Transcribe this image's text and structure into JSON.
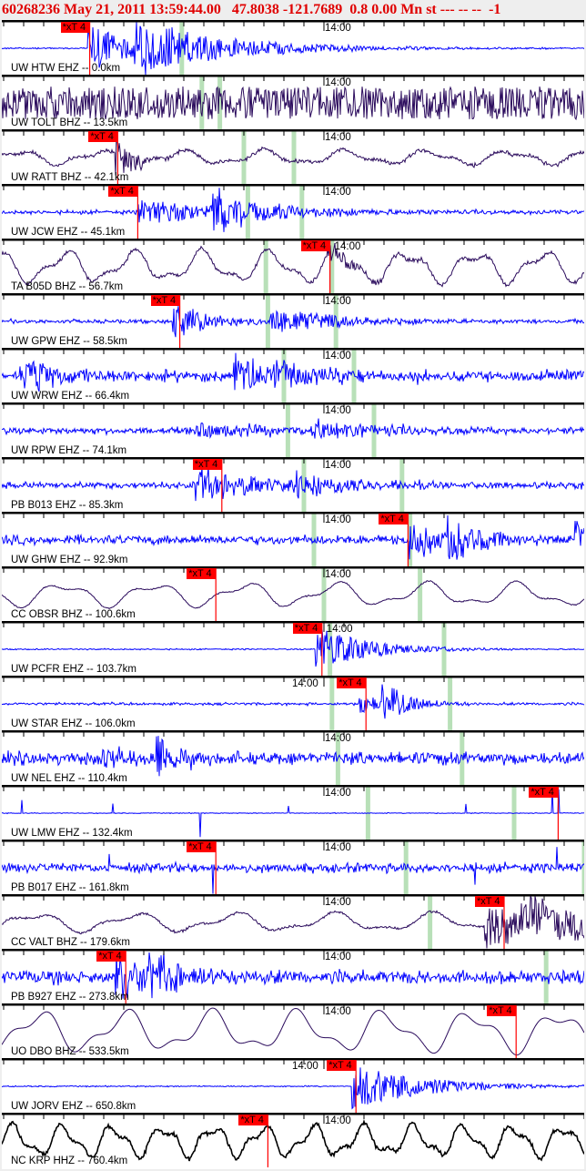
{
  "header": {
    "event_id": "60268236",
    "datetime": "May 21, 2011 13:59:44.00",
    "latitude": "47.8038",
    "longitude": "-121.7689",
    "magnitude": "0.8",
    "depth": "0.00",
    "mag_type": "Mn",
    "status": "st",
    "extra": "--- -- --",
    "flag": "-1"
  },
  "chart_data": {
    "type": "line",
    "title": "60268236 May 21, 2011 13:59:44.00   47.8038 -121.7689  0.8 0.00 Mn st --- -- --  -1",
    "x_axis": {
      "start": "13:59:44.0",
      "tick_interval_s": 1,
      "tick_label": "14:00"
    },
    "pick_label": "*xT 4",
    "colors": {
      "pick": "#ff0000",
      "theoretical_arrival": "#b8e0b8",
      "EHZ": "#0000ff",
      "BHZ": "#2a0a5c",
      "HHZ": "#000000",
      "header": "#e00000"
    },
    "traces": [
      {
        "label": "UW HTW EHZ -- 0.0km",
        "channel": "EHZ",
        "pick": "13:59:48.3",
        "arrivals": [
          "13:59:52.9"
        ]
      },
      {
        "label": "UW TOLT BHZ -- 13.5km",
        "channel": "BHZ",
        "pick": null,
        "arrivals": [
          "13:59:53.9",
          "13:59:54.8"
        ]
      },
      {
        "label": "UW RATT BHZ -- 42.1km",
        "channel": "BHZ",
        "pick": "13:59:49.7",
        "arrivals": [
          "13:59:56.0",
          "13:59:58.5"
        ]
      },
      {
        "label": "UW JCW EHZ -- 45.1km",
        "channel": "EHZ",
        "pick": "13:59:50.7",
        "arrivals": [
          "13:59:56.2",
          "13:59:58.9"
        ]
      },
      {
        "label": "TA B05D BHZ -- 56.7km",
        "channel": "BHZ",
        "pick": "14:00:00.3",
        "arrivals": [
          "13:59:57.1",
          "14:00:00.4"
        ]
      },
      {
        "label": "UW GPW EHZ -- 58.5km",
        "channel": "EHZ",
        "pick": "13:59:52.8",
        "arrivals": [
          "13:59:57.2",
          "14:00:00.6"
        ]
      },
      {
        "label": "UW WRW EHZ -- 66.4km",
        "channel": "EHZ",
        "pick": null,
        "arrivals": [
          "13:59:58.0",
          "14:00:01.5"
        ]
      },
      {
        "label": "UW RPW EHZ -- 74.1km",
        "channel": "EHZ",
        "pick": null,
        "arrivals": [
          "13:59:58.2",
          "14:00:02.5"
        ]
      },
      {
        "label": "PB B013 EHZ -- 85.3km",
        "channel": "EHZ",
        "pick": "13:59:54.9",
        "arrivals": [
          "13:59:59.0",
          "14:00:03.9"
        ]
      },
      {
        "label": "UW GHW EHZ -- 92.9km",
        "channel": "EHZ",
        "pick": "14:00:04.2",
        "arrivals": [
          "13:59:59.5",
          "14:00:04.3"
        ]
      },
      {
        "label": "CC OBSR BHZ -- 100.6km",
        "channel": "BHZ",
        "pick": "13:59:54.6",
        "arrivals": [
          "14:00:00.0",
          "14:00:04.8"
        ]
      },
      {
        "label": "UW PCFR EHZ -- 103.7km",
        "channel": "EHZ",
        "pick": "13:59:59.9",
        "arrivals": [
          "14:00:00.3",
          "14:00:06.0"
        ]
      },
      {
        "label": "UW STAR EHZ -- 106.0km",
        "channel": "EHZ",
        "pick": "14:00:02.1",
        "arrivals": [
          "14:00:00.4",
          "14:00:06.3"
        ]
      },
      {
        "label": "UW NEL EHZ -- 110.4km",
        "channel": "EHZ",
        "pick": null,
        "arrivals": [
          "14:00:00.7",
          "14:00:06.9"
        ]
      },
      {
        "label": "UW LMW EHZ -- 132.4km",
        "channel": "EHZ",
        "pick": "14:00:11.7",
        "arrivals": [
          "14:00:02.2",
          "14:00:09.5"
        ]
      },
      {
        "label": "PB B017 EHZ -- 161.8km",
        "channel": "EHZ",
        "pick": "13:59:54.6",
        "arrivals": [
          "14:00:04.1",
          "14:00:13.0"
        ]
      },
      {
        "label": "CC VALT BHZ -- 179.6km",
        "channel": "BHZ",
        "pick": "14:00:09.0",
        "arrivals": [
          "14:00:05.3"
        ]
      },
      {
        "label": "PB B927 EHZ -- 273.8km",
        "channel": "EHZ",
        "pick": "13:59:50.1",
        "arrivals": [
          "14:00:11.1"
        ]
      },
      {
        "label": "UO DBO BHZ -- 533.5km",
        "channel": "BHZ",
        "pick": "14:00:09.6",
        "arrivals": []
      },
      {
        "label": "UW JORV EHZ -- 650.8km",
        "channel": "EHZ",
        "pick": "14:00:01.6",
        "arrivals": []
      },
      {
        "label": "NC KRP HHZ -- 760.4km",
        "channel": "HHZ",
        "pick": "13:59:57.2",
        "arrivals": []
      }
    ]
  }
}
